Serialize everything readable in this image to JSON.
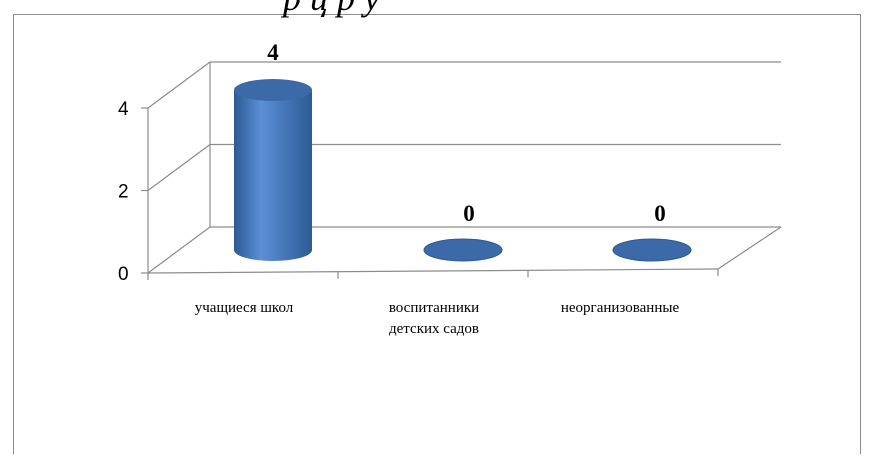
{
  "title_fragment": "р                              ц             р у",
  "chart_data": {
    "type": "bar",
    "style": "3d-cylinder",
    "categories": [
      "учащиеся школ",
      "воспитанники детских садов",
      "неорганизованные"
    ],
    "category_label_lines": [
      [
        "учащиеся школ"
      ],
      [
        "воспитанники",
        "детских садов"
      ],
      [
        "неорганизованные"
      ]
    ],
    "values": [
      4,
      0,
      0
    ],
    "data_labels": [
      "4",
      "0",
      "0"
    ],
    "ylim": [
      0,
      4
    ],
    "y_ticks": [
      "0",
      "2",
      "4"
    ],
    "grid": true,
    "legend": "none",
    "title": "",
    "xlabel": "",
    "ylabel": "",
    "colors": {
      "bar_light": "#5b8fd6",
      "bar_mid": "#4a7ebf",
      "bar_dark": "#2c5a94",
      "bar_top": "#3c6aa8",
      "grid": "#8c8c8c"
    }
  }
}
